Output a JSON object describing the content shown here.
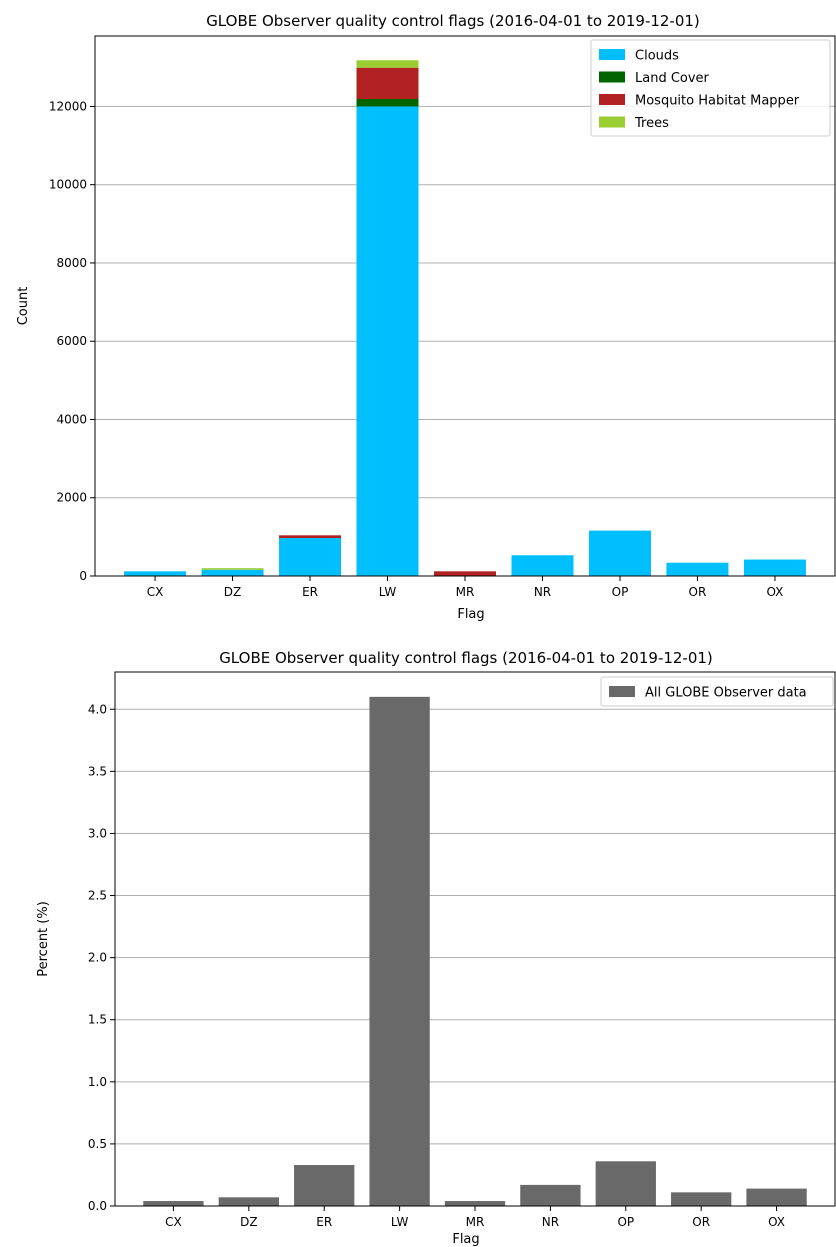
{
  "chart_data": [
    {
      "type": "bar",
      "stacked": true,
      "title": "GLOBE Observer quality control flags (2016-04-01 to 2019-12-01)",
      "xlabel": "Flag",
      "ylabel": "Count",
      "categories": [
        "CX",
        "DZ",
        "ER",
        "LW",
        "MR",
        "NR",
        "OP",
        "OR",
        "OX"
      ],
      "ylim": [
        0,
        13800
      ],
      "yticks": [
        0,
        2000,
        4000,
        6000,
        8000,
        10000,
        12000
      ],
      "grid": true,
      "legend_position": "top-right",
      "series": [
        {
          "name": "Clouds",
          "color": "#00BFFF",
          "values": [
            120,
            160,
            970,
            12000,
            0,
            530,
            1160,
            340,
            420
          ]
        },
        {
          "name": "Land Cover",
          "color": "#006400",
          "values": [
            0,
            0,
            0,
            190,
            0,
            0,
            0,
            0,
            0
          ]
        },
        {
          "name": "Mosquito Habitat Mapper",
          "color": "#B22222",
          "values": [
            0,
            0,
            70,
            800,
            120,
            0,
            0,
            0,
            0
          ]
        },
        {
          "name": "Trees",
          "color": "#9ACD32",
          "values": [
            0,
            40,
            0,
            190,
            0,
            0,
            0,
            0,
            0
          ]
        }
      ]
    },
    {
      "type": "bar",
      "title": "GLOBE Observer quality control flags (2016-04-01 to 2019-12-01)",
      "xlabel": "Flag",
      "ylabel": "Percent (%)",
      "categories": [
        "CX",
        "DZ",
        "ER",
        "LW",
        "MR",
        "NR",
        "OP",
        "OR",
        "OX"
      ],
      "ylim": [
        0,
        4.3
      ],
      "yticks": [
        "0.0",
        "0.5",
        "1.0",
        "1.5",
        "2.0",
        "2.5",
        "3.0",
        "3.5",
        "4.0"
      ],
      "grid": true,
      "legend_position": "top-right",
      "series": [
        {
          "name": "All GLOBE Observer data",
          "color": "#696969",
          "values": [
            0.04,
            0.07,
            0.33,
            4.1,
            0.04,
            0.17,
            0.36,
            0.11,
            0.14
          ]
        }
      ]
    }
  ]
}
